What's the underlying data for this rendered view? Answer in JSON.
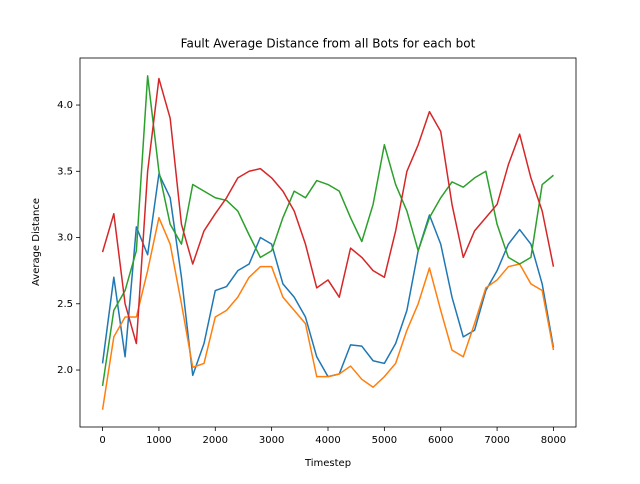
{
  "chart_data": {
    "type": "line",
    "title": "Fault Average Distance from all Bots for each bot",
    "xlabel": "Timestep",
    "ylabel": "Average Distance",
    "x": [
      0,
      200,
      400,
      600,
      800,
      1000,
      1200,
      1400,
      1600,
      1800,
      2000,
      2200,
      2400,
      2600,
      2800,
      3000,
      3200,
      3400,
      3600,
      3800,
      4000,
      4200,
      4400,
      4600,
      4800,
      5000,
      5200,
      5400,
      5600,
      5800,
      6000,
      6200,
      6400,
      6600,
      6800,
      7000,
      7200,
      7400,
      7600,
      7800,
      8000
    ],
    "series": [
      {
        "color": "#1f77b4",
        "values": [
          2.05,
          2.7,
          2.1,
          3.08,
          2.87,
          3.48,
          3.3,
          2.7,
          1.96,
          2.2,
          2.6,
          2.63,
          2.75,
          2.8,
          3.0,
          2.95,
          2.65,
          2.55,
          2.4,
          2.1,
          1.95,
          1.97,
          2.19,
          2.18,
          2.07,
          2.05,
          2.2,
          2.45,
          2.9,
          3.17,
          2.95,
          2.55,
          2.25,
          2.3,
          2.6,
          2.75,
          2.95,
          3.06,
          2.95,
          2.65,
          2.17
        ]
      },
      {
        "color": "#ff7f0e",
        "values": [
          1.7,
          2.25,
          2.4,
          2.4,
          2.75,
          3.15,
          2.95,
          2.5,
          2.02,
          2.05,
          2.4,
          2.45,
          2.55,
          2.7,
          2.78,
          2.78,
          2.55,
          2.45,
          2.35,
          1.95,
          1.95,
          1.97,
          2.03,
          1.93,
          1.87,
          1.95,
          2.05,
          2.3,
          2.5,
          2.77,
          2.45,
          2.15,
          2.1,
          2.35,
          2.62,
          2.68,
          2.78,
          2.8,
          2.65,
          2.6,
          2.15
        ]
      },
      {
        "color": "#2ca02c",
        "values": [
          1.88,
          2.45,
          2.6,
          2.9,
          4.22,
          3.5,
          3.1,
          2.95,
          3.4,
          3.35,
          3.3,
          3.28,
          3.2,
          3.02,
          2.85,
          2.9,
          3.15,
          3.35,
          3.3,
          3.43,
          3.4,
          3.35,
          3.15,
          2.97,
          3.25,
          3.7,
          3.4,
          3.2,
          2.9,
          3.15,
          3.3,
          3.42,
          3.38,
          3.45,
          3.5,
          3.1,
          2.85,
          2.8,
          2.85,
          3.4,
          3.47
        ]
      },
      {
        "color": "#d62728",
        "values": [
          2.89,
          3.18,
          2.5,
          2.2,
          3.5,
          4.2,
          3.9,
          3.1,
          2.8,
          3.05,
          3.18,
          3.3,
          3.45,
          3.5,
          3.52,
          3.45,
          3.35,
          3.2,
          2.95,
          2.62,
          2.68,
          2.55,
          2.92,
          2.85,
          2.75,
          2.7,
          3.05,
          3.5,
          3.7,
          3.95,
          3.8,
          3.25,
          2.85,
          3.05,
          3.15,
          3.25,
          3.55,
          3.78,
          3.45,
          3.2,
          2.78
        ]
      }
    ],
    "xlim": [
      -400,
      8400
    ],
    "ylim": [
      1.57,
      4.355
    ],
    "xticks": [
      0,
      1000,
      2000,
      3000,
      4000,
      5000,
      6000,
      7000,
      8000
    ],
    "yticks": [
      {
        "value": 2.0,
        "label": "2.0"
      },
      {
        "value": 2.5,
        "label": "2.5"
      },
      {
        "value": 3.0,
        "label": "3.0"
      },
      {
        "value": 3.5,
        "label": "3.5"
      },
      {
        "value": 4.0,
        "label": "4.0"
      }
    ]
  }
}
